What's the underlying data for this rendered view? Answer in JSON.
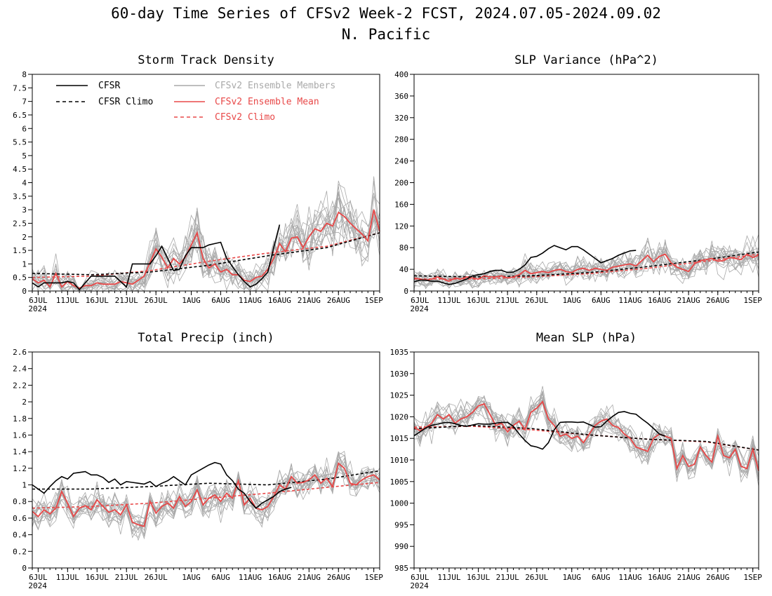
{
  "figure": {
    "title_line1": "60-day Time Series of CFSv2 Week-2 FCST, 2024.07.05-2024.09.02",
    "title_line2": "N. Pacific"
  },
  "legend": {
    "cfsr": "CFSR",
    "cfsr_climo": "CFSR Climo",
    "members": "CFSv2 Ensemble Members",
    "mean": "CFSv2 Ensemble Mean",
    "cfsv2_climo": "CFSv2 Climo"
  },
  "colors": {
    "cfsr": "#000000",
    "members": "#a9a9a9",
    "mean": "#e84848",
    "cfsv2_climo": "#e84848",
    "axis": "#000000"
  },
  "x_axis": {
    "day_range": [
      0,
      59
    ],
    "ticks": [
      {
        "day": 1,
        "label": "6JUL"
      },
      {
        "day": 6,
        "label": "11JUL"
      },
      {
        "day": 11,
        "label": "16JUL"
      },
      {
        "day": 16,
        "label": "21JUL"
      },
      {
        "day": 21,
        "label": "26JUL"
      },
      {
        "day": 27,
        "label": "1AUG"
      },
      {
        "day": 32,
        "label": "6AUG"
      },
      {
        "day": 37,
        "label": "11AUG"
      },
      {
        "day": 42,
        "label": "16AUG"
      },
      {
        "day": 47,
        "label": "21AUG"
      },
      {
        "day": 52,
        "label": "26AUG"
      },
      {
        "day": 58,
        "label": "1SEP"
      }
    ],
    "year_label": "2024"
  },
  "chart_data": [
    {
      "type": "line",
      "title": "Storm Track Density",
      "ylim": [
        0,
        8
      ],
      "yticks": [
        "0",
        "0.5",
        "1",
        "1.5",
        "2",
        "2.5",
        "3",
        "3.5",
        "4",
        "4.5",
        "5",
        "5.5",
        "6",
        "6.5",
        "7",
        "7.5",
        "8"
      ],
      "cfsr": [
        0.3,
        0.15,
        0.3,
        0.3,
        0.3,
        0.3,
        0.35,
        0.3,
        0.05,
        0.3,
        0.55,
        0.55,
        0.55,
        0.55,
        0.55,
        0.35,
        0.15,
        1.0,
        1.0,
        1.0,
        1.0,
        1.3,
        1.65,
        1.2,
        0.75,
        0.8,
        1.3,
        1.6,
        1.6,
        1.6,
        1.7,
        1.75,
        1.8,
        1.2,
        0.9,
        0.6,
        0.35,
        0.15,
        0.25,
        0.45,
        0.7,
        1.6,
        2.45
      ],
      "cfsr_climo": {
        "x": [
          0,
          10,
          20,
          30,
          40,
          50,
          59
        ],
        "y": [
          0.65,
          0.6,
          0.7,
          0.95,
          1.3,
          1.6,
          2.15
        ]
      },
      "ens_mean": [
        0.45,
        0.3,
        0.4,
        0.15,
        0.65,
        0.15,
        0.35,
        0.2,
        0.1,
        0.2,
        0.2,
        0.3,
        0.25,
        0.25,
        0.25,
        0.35,
        0.3,
        0.25,
        0.4,
        0.55,
        1.05,
        1.55,
        1.25,
        0.85,
        1.2,
        1.0,
        1.25,
        1.7,
        2.15,
        1.2,
        0.85,
        1.0,
        0.7,
        0.8,
        0.6,
        0.6,
        0.4,
        0.35,
        0.5,
        0.55,
        0.8,
        1.2,
        1.75,
        1.45,
        1.95,
        2.0,
        1.6,
        2.0,
        2.3,
        2.2,
        2.5,
        2.4,
        2.9,
        2.75,
        2.5,
        2.3,
        2.1,
        1.85,
        3.0,
        2.2
      ],
      "cfsv2_climo": {
        "x": [
          0,
          10,
          20,
          30,
          40,
          50,
          59
        ],
        "y": [
          0.5,
          0.55,
          0.75,
          1.1,
          1.4,
          1.65,
          2.15
        ]
      }
    },
    {
      "type": "line",
      "title": "SLP Variance (hPa^2)",
      "ylim": [
        0,
        400
      ],
      "yticks": [
        "0",
        "40",
        "80",
        "120",
        "160",
        "200",
        "240",
        "280",
        "320",
        "360",
        "400"
      ],
      "cfsr": [
        17,
        20,
        20,
        18,
        18,
        15,
        12,
        14,
        18,
        22,
        28,
        30,
        32,
        36,
        38,
        38,
        34,
        35,
        40,
        48,
        62,
        64,
        70,
        78,
        84,
        80,
        76,
        82,
        82,
        76,
        68,
        60,
        52,
        56,
        60,
        66,
        70,
        74,
        75
      ],
      "cfsr_climo": {
        "x": [
          0,
          10,
          20,
          30,
          40,
          50,
          59
        ],
        "y": [
          28,
          26,
          28,
          34,
          45,
          58,
          72
        ]
      },
      "ens_mean": [
        24,
        22,
        20,
        22,
        26,
        22,
        18,
        24,
        22,
        26,
        24,
        22,
        28,
        26,
        26,
        28,
        24,
        26,
        30,
        38,
        32,
        34,
        36,
        34,
        38,
        40,
        36,
        34,
        40,
        42,
        38,
        42,
        40,
        38,
        44,
        46,
        48,
        50,
        46,
        56,
        66,
        54,
        64,
        68,
        52,
        44,
        40,
        36,
        50,
        56,
        58,
        60,
        55,
        56,
        62,
        60,
        58,
        68,
        62,
        66
      ],
      "cfsv2_climo": {
        "x": [
          0,
          10,
          20,
          30,
          40,
          50,
          59
        ],
        "y": [
          22,
          22,
          26,
          32,
          42,
          55,
          68
        ]
      }
    },
    {
      "type": "line",
      "title": "Total Precip (inch)",
      "ylim": [
        0,
        2.6
      ],
      "yticks": [
        "0",
        "0.2",
        "0.4",
        "0.6",
        "0.8",
        "1",
        "1.2",
        "1.4",
        "1.6",
        "1.8",
        "2",
        "2.2",
        "2.4",
        "2.6"
      ],
      "cfsr": [
        1.0,
        0.95,
        0.9,
        0.98,
        1.05,
        1.1,
        1.07,
        1.14,
        1.15,
        1.16,
        1.12,
        1.12,
        1.09,
        1.03,
        1.07,
        1.0,
        1.04,
        1.03,
        1.02,
        1.01,
        1.04,
        0.98,
        1.02,
        1.05,
        1.1,
        1.05,
        1.0,
        1.12,
        1.16,
        1.2,
        1.24,
        1.27,
        1.25,
        1.12,
        1.05,
        0.95,
        0.9,
        0.8,
        0.72,
        0.78,
        0.82,
        0.86,
        0.92,
        0.95,
        0.97
      ],
      "cfsr_climo": {
        "x": [
          0,
          10,
          20,
          30,
          40,
          50,
          59
        ],
        "y": [
          0.95,
          0.95,
          0.98,
          1.02,
          1.0,
          1.07,
          1.17
        ]
      },
      "ens_mean": [
        0.68,
        0.62,
        0.7,
        0.65,
        0.72,
        0.92,
        0.78,
        0.62,
        0.72,
        0.75,
        0.7,
        0.82,
        0.74,
        0.67,
        0.7,
        0.64,
        0.76,
        0.55,
        0.52,
        0.5,
        0.8,
        0.66,
        0.74,
        0.78,
        0.72,
        0.86,
        0.74,
        0.8,
        0.94,
        0.76,
        0.84,
        0.88,
        0.8,
        0.9,
        0.84,
        1.05,
        0.76,
        0.84,
        0.72,
        0.7,
        0.74,
        0.86,
        1.0,
        0.95,
        1.1,
        1.02,
        1.03,
        1.06,
        1.12,
        1.02,
        1.08,
        0.98,
        1.26,
        1.2,
        1.02,
        1.0,
        1.06,
        1.1,
        1.12,
        1.06
      ],
      "cfsv2_climo": {
        "x": [
          0,
          10,
          20,
          30,
          40,
          50,
          59
        ],
        "y": [
          0.72,
          0.74,
          0.78,
          0.84,
          0.9,
          0.97,
          1.03
        ]
      }
    },
    {
      "type": "line",
      "title": "Mean SLP (hPa)",
      "ylim": [
        985,
        1035
      ],
      "yticks": [
        "985",
        "990",
        "995",
        "1000",
        "1005",
        "1010",
        "1015",
        "1020",
        "1025",
        "1030",
        "1035"
      ],
      "cfsr": [
        1015.6,
        1016.5,
        1017.4,
        1018.0,
        1018.3,
        1018.6,
        1018.7,
        1018.4,
        1018.0,
        1017.8,
        1018.1,
        1018.4,
        1018.3,
        1018.3,
        1018.5,
        1018.7,
        1018.7,
        1017.8,
        1016.0,
        1014.5,
        1013.3,
        1013.0,
        1012.5,
        1014.0,
        1017.0,
        1018.7,
        1018.8,
        1018.8,
        1018.7,
        1018.8,
        1018.2,
        1017.6,
        1017.7,
        1019.0,
        1020.1,
        1021.0,
        1021.2,
        1020.8,
        1020.6,
        1019.5,
        1018.5,
        1017.3,
        1016.0,
        1015.5
      ],
      "cfsr_climo": {
        "x": [
          0,
          10,
          20,
          30,
          40,
          50,
          59
        ],
        "y": [
          1017.2,
          1018.0,
          1017.3,
          1015.8,
          1014.8,
          1014.3,
          1012.3
        ]
      },
      "ens_mean": [
        1017.5,
        1016.8,
        1017.5,
        1018.5,
        1020.5,
        1019.5,
        1020.5,
        1018.5,
        1019.5,
        1020.0,
        1021.0,
        1022.5,
        1023.0,
        1020.5,
        1018.0,
        1018.5,
        1016.5,
        1018.0,
        1019.0,
        1017.0,
        1021.0,
        1022.0,
        1023.5,
        1019.5,
        1018.0,
        1015.5,
        1016.0,
        1015.0,
        1015.5,
        1014.0,
        1016.0,
        1018.0,
        1019.0,
        1019.5,
        1018.0,
        1017.5,
        1016.0,
        1015.0,
        1013.0,
        1012.5,
        1012.0,
        1015.0,
        1016.0,
        1015.5,
        1015.0,
        1008.0,
        1011.0,
        1008.5,
        1009.0,
        1013.0,
        1011.0,
        1009.5,
        1015.5,
        1011.0,
        1010.5,
        1012.5,
        1008.5,
        1008.0,
        1012.5,
        1007.5
      ],
      "cfsv2_climo": {
        "x": [
          0,
          10,
          20,
          30,
          40,
          50,
          59
        ],
        "y": [
          1017.6,
          1017.8,
          1017.0,
          1015.8,
          1014.8,
          1014.2,
          1012.3
        ]
      }
    }
  ]
}
